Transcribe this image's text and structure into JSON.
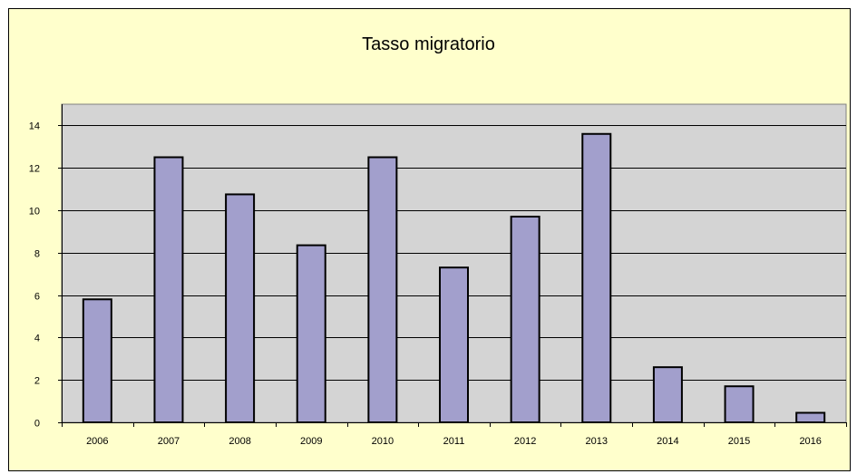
{
  "chart_data": {
    "type": "bar",
    "title": "Tasso migratorio",
    "xlabel": "",
    "ylabel": "",
    "categories": [
      "2006",
      "2007",
      "2008",
      "2009",
      "2010",
      "2011",
      "2012",
      "2013",
      "2014",
      "2015",
      "2016"
    ],
    "values": [
      5.8,
      12.5,
      10.75,
      8.35,
      12.5,
      7.3,
      9.7,
      13.6,
      2.6,
      1.7,
      0.45
    ],
    "ylim": [
      0,
      15
    ],
    "yticks": [
      0,
      2,
      4,
      6,
      8,
      10,
      12,
      14
    ],
    "ytick_labels": [
      "0",
      "2",
      "4",
      "6",
      "8",
      "10",
      "12",
      "14"
    ],
    "grid": true,
    "legend": "none",
    "colors": {
      "bar_fill": "#a29fcc",
      "bar_stroke": "#000000",
      "plot_background": "#d4d4d4",
      "chart_background": "#ffffcc",
      "grid": "#000000"
    }
  }
}
